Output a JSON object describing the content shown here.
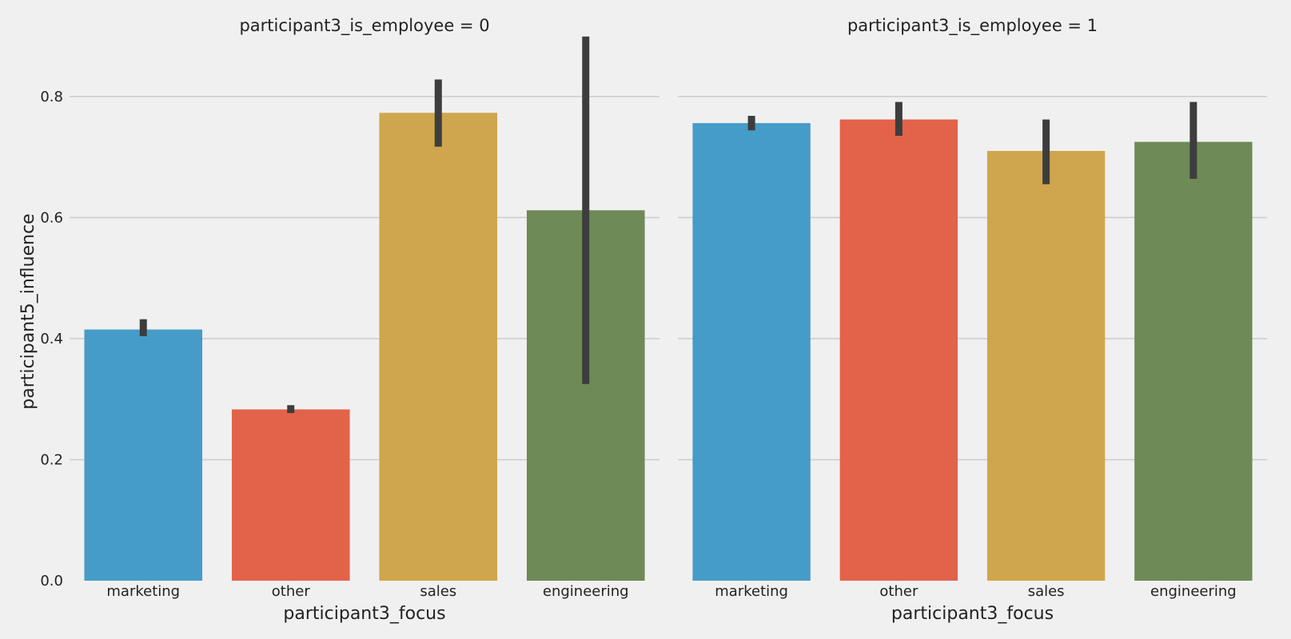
{
  "chart_data": {
    "type": "bar",
    "ylabel": "participant5_influence",
    "ylim": [
      0,
      0.9
    ],
    "yticks": [
      "0.0",
      "0.2",
      "0.4",
      "0.6",
      "0.8"
    ],
    "grid": "horizontal",
    "colors": {
      "marketing": "#469cc8",
      "other": "#e3624a",
      "sales": "#cfa64d",
      "engineering": "#6e8a57",
      "errorbar": "#3d3d3d",
      "background": "#f0f0f0",
      "grid": "#cbcbcb"
    },
    "panels": [
      {
        "title": "participant3_is_employee = 0",
        "xlabel": "participant3_focus",
        "categories": [
          "marketing",
          "other",
          "sales",
          "engineering"
        ],
        "values": [
          0.415,
          0.283,
          0.773,
          0.612
        ],
        "ci_low": [
          0.404,
          0.277,
          0.717,
          0.325
        ],
        "ci_high": [
          0.432,
          0.29,
          0.828,
          0.899
        ]
      },
      {
        "title": "participant3_is_employee = 1",
        "xlabel": "participant3_focus",
        "categories": [
          "marketing",
          "other",
          "sales",
          "engineering"
        ],
        "values": [
          0.756,
          0.762,
          0.71,
          0.725
        ],
        "ci_low": [
          0.744,
          0.735,
          0.655,
          0.664
        ],
        "ci_high": [
          0.768,
          0.791,
          0.762,
          0.791
        ]
      }
    ]
  }
}
